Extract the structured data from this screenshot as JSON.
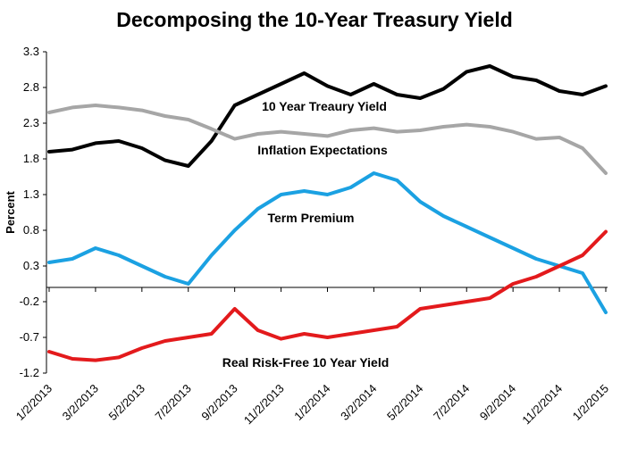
{
  "chart_data": {
    "type": "line",
    "title": "Decomposing the 10-Year Treasury Yield",
    "ylabel": "Percent",
    "xlabel": "",
    "ylim": [
      -1.2,
      3.3
    ],
    "yticks": [
      "3.3",
      "2.8",
      "2.3",
      "1.8",
      "1.3",
      "0.8",
      "0.3",
      "-0.2",
      "-0.7",
      "-1.2"
    ],
    "x_categories": [
      "1/2/2013",
      "3/2/2013",
      "5/2/2013",
      "7/2/2013",
      "9/2/2013",
      "11/2/2013",
      "1/2/2014",
      "3/2/2014",
      "5/2/2014",
      "7/2/2014",
      "9/2/2014",
      "11/2/2014",
      "1/2/2015"
    ],
    "grid": false,
    "legend": "none",
    "series": [
      {
        "name": "10 Year Treasury Yield",
        "color": "#000000",
        "x": [
          0,
          0.5,
          1,
          1.5,
          2,
          2.5,
          3,
          3.5,
          4,
          4.5,
          5,
          5.5,
          6,
          6.5,
          7,
          7.5,
          8,
          8.5,
          9,
          9.5,
          10,
          10.5,
          11,
          11.5,
          12
        ],
        "values": [
          1.9,
          1.93,
          2.02,
          2.05,
          1.95,
          1.78,
          1.7,
          2.05,
          2.55,
          2.7,
          2.85,
          3.0,
          2.82,
          2.7,
          2.85,
          2.7,
          2.65,
          2.78,
          3.02,
          3.1,
          2.95,
          2.9,
          2.75,
          2.7,
          2.82
        ]
      },
      {
        "name": "Inflation Expectations",
        "color": "#a6a6a6",
        "x": [
          0,
          0.5,
          1,
          1.5,
          2,
          2.5,
          3,
          3.5,
          4,
          4.5,
          5,
          5.5,
          6,
          6.5,
          7,
          7.5,
          8,
          8.5,
          9,
          9.5,
          10,
          10.5,
          11,
          11.5,
          12
        ],
        "values": [
          2.45,
          2.52,
          2.55,
          2.52,
          2.48,
          2.4,
          2.35,
          2.22,
          2.08,
          2.15,
          2.18,
          2.15,
          2.12,
          2.2,
          2.23,
          2.18,
          2.2,
          2.25,
          2.28,
          2.25,
          2.18,
          2.08,
          2.1,
          1.95,
          1.6
        ]
      },
      {
        "name": "Term Premium",
        "color": "#1ba1e2",
        "x": [
          0,
          0.5,
          1,
          1.5,
          2,
          2.5,
          3,
          3.5,
          4,
          4.5,
          5,
          5.5,
          6,
          6.5,
          7,
          7.5,
          8,
          8.5,
          9,
          9.5,
          10,
          10.5,
          11,
          11.5,
          12
        ],
        "values": [
          0.35,
          0.4,
          0.55,
          0.45,
          0.3,
          0.15,
          0.05,
          0.45,
          0.8,
          1.1,
          1.3,
          1.35,
          1.3,
          1.4,
          1.6,
          1.5,
          1.2,
          1.0,
          0.85,
          0.7,
          0.55,
          0.4,
          0.3,
          0.2,
          -0.35
        ]
      },
      {
        "name": "Real Risk-Free 10 Year Yield",
        "color": "#e31a1c",
        "x": [
          0,
          0.5,
          1,
          1.5,
          2,
          2.5,
          3,
          3.5,
          4,
          4.5,
          5,
          5.5,
          6,
          6.5,
          7,
          7.5,
          8,
          8.5,
          9,
          9.5,
          10,
          10.5,
          11,
          11.5,
          12
        ],
        "values": [
          -0.9,
          -1.0,
          -1.02,
          -0.98,
          -0.85,
          -0.75,
          -0.7,
          -0.65,
          -0.3,
          -0.6,
          -0.72,
          -0.65,
          -0.7,
          -0.65,
          -0.6,
          -0.55,
          -0.3,
          -0.25,
          -0.2,
          -0.15,
          0.05,
          0.15,
          0.3,
          0.45,
          0.78
        ]
      }
    ],
    "annotations": [
      "10 Year Treaury Yield",
      "Inflation Expectations",
      "Term Premium",
      "Real Risk-Free 10 Year Yield"
    ]
  }
}
